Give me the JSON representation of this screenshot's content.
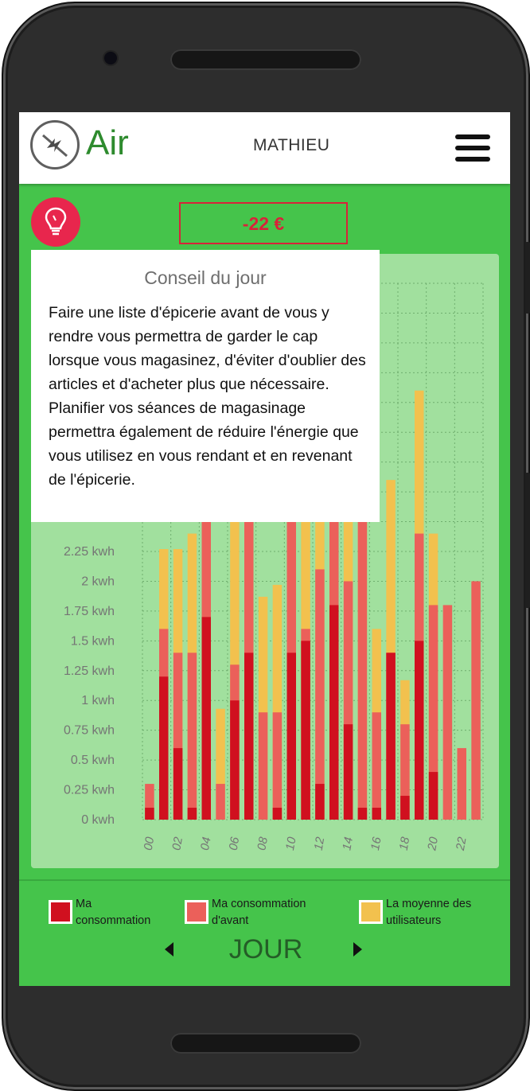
{
  "app": {
    "name": "Air",
    "user": "MATHIEU"
  },
  "header": {
    "menu_icon": "hamburger-menu-icon",
    "logo_icon": "lightning-circle-logo-icon",
    "tip_icon": "lightbulb-icon"
  },
  "savings": {
    "amount": "-22 €"
  },
  "tip": {
    "title": "Conseil du jour",
    "text": "Faire une liste d'épicerie avant de vous y rendre vous permettra de garder le cap lorsque vous magasinez, d'éviter d'oublier des articles et d'acheter plus que nécessaire. Planifier vos séances de magasinage permettra également de réduire l'énergie que vous utilisez en vous rendant et en revenant de l'épicerie."
  },
  "legend": {
    "mine": "Ma consommation",
    "before": "Ma consommation d'avant",
    "average": "La moyenne des utilisateurs"
  },
  "period": {
    "label": "JOUR",
    "prev_icon": "triangle-left-icon",
    "next_icon": "triangle-right-icon"
  },
  "colors": {
    "mine": "#d0101f",
    "before": "#eb605a",
    "average": "#f2c14e",
    "accent": "#45c44b"
  },
  "chart_data": {
    "type": "bar",
    "stacked": "overlay",
    "unit": "kwh",
    "ylim": [
      0,
      4.5
    ],
    "y_ticks": [
      "0 kwh",
      "0.25 kwh",
      "0.5 kwh",
      "0.75 kwh",
      "1 kwh",
      "1.25 kwh",
      "1.5 kwh",
      "1.75 kwh",
      "2 kwh",
      "2.25 kwh"
    ],
    "y_tick_values": [
      0,
      0.25,
      0.5,
      0.75,
      1,
      1.25,
      1.5,
      1.75,
      2,
      2.25
    ],
    "x_tick_labels": [
      "00",
      "02",
      "04",
      "06",
      "08",
      "10",
      "12",
      "14",
      "16",
      "18",
      "20",
      "22"
    ],
    "categories": [
      "00",
      "01",
      "02",
      "03",
      "04",
      "05",
      "06",
      "07",
      "08",
      "09",
      "10",
      "11",
      "12",
      "13",
      "14",
      "15",
      "16",
      "17",
      "18",
      "19",
      "20",
      "21",
      "22",
      "23"
    ],
    "series": [
      {
        "name": "La moyenne des utilisateurs",
        "values": [
          0,
          2.27,
          2.27,
          2.4,
          2.8,
          0.93,
          2.85,
          2.9,
          1.87,
          1.97,
          2.85,
          2.9,
          2.9,
          2.9,
          2.85,
          2.85,
          1.6,
          2.85,
          1.17,
          3.6,
          2.4,
          0,
          0,
          0
        ]
      },
      {
        "name": "Ma consommation d'avant",
        "values": [
          0.3,
          1.6,
          1.4,
          1.4,
          2.9,
          0.3,
          1.3,
          2.9,
          0.9,
          0.9,
          2.9,
          1.6,
          2.1,
          2.9,
          2.0,
          2.9,
          0.9,
          1.4,
          0.8,
          2.4,
          1.8,
          1.8,
          0.6,
          2.0
        ]
      },
      {
        "name": "Ma consommation",
        "values": [
          0.1,
          1.2,
          0.6,
          0.1,
          1.7,
          0,
          1.0,
          1.4,
          0,
          0.1,
          1.4,
          1.5,
          0.3,
          1.8,
          0.8,
          0.1,
          0.1,
          1.4,
          0.2,
          1.5,
          0.4,
          0,
          0,
          0
        ]
      }
    ]
  }
}
